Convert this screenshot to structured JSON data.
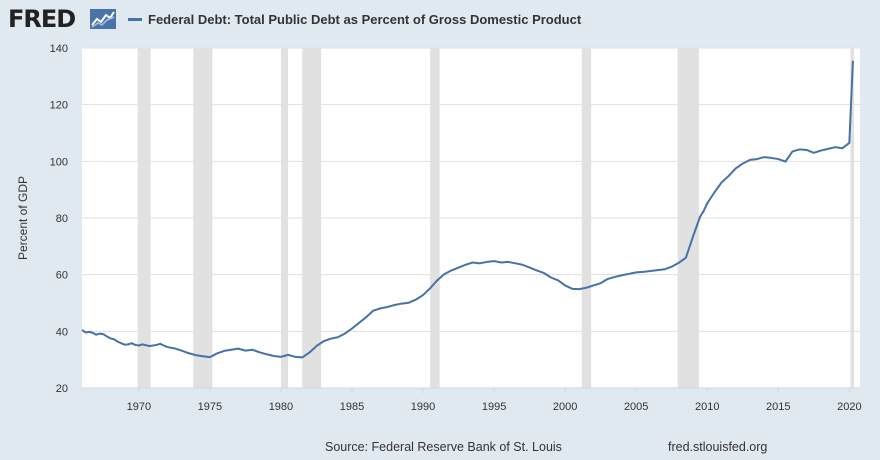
{
  "header": {
    "logo_text": "FRED",
    "legend_label": "Federal Debt: Total Public Debt as Percent of Gross Domestic Product"
  },
  "footer": {
    "source": "Source: Federal Reserve Bank of St. Louis",
    "url": "fred.stlouisfed.org"
  },
  "colors": {
    "series": "#4572a7",
    "recession": "#e1e1e1",
    "background": "#e1e9f0",
    "plot_background": "#ffffff"
  },
  "chart_data": {
    "type": "line",
    "title": "Federal Debt: Total Public Debt as Percent of Gross Domestic Product",
    "xlabel": "",
    "ylabel": "Percent of GDP",
    "xlim": [
      1966.0,
      2020.75
    ],
    "ylim": [
      20,
      140
    ],
    "x_ticks": [
      1970,
      1975,
      1980,
      1985,
      1990,
      1995,
      2000,
      2005,
      2010,
      2015,
      2020
    ],
    "y_ticks": [
      20,
      40,
      60,
      80,
      100,
      120,
      140
    ],
    "grid": "horizontal",
    "legend": "top",
    "recessions": [
      [
        1969.92,
        1970.83
      ],
      [
        1973.83,
        1975.17
      ],
      [
        1980.0,
        1980.5
      ],
      [
        1981.5,
        1982.83
      ],
      [
        1990.5,
        1991.17
      ],
      [
        2001.17,
        2001.83
      ],
      [
        2007.92,
        2009.42
      ],
      [
        2020.08,
        2020.33
      ]
    ],
    "series": [
      {
        "name": "Federal Debt: Total Public Debt as Percent of Gross Domestic Product",
        "x": [
          1966.0,
          1966.25,
          1966.5,
          1966.75,
          1967.0,
          1967.25,
          1967.5,
          1967.75,
          1968.0,
          1968.25,
          1968.5,
          1968.75,
          1969.0,
          1969.25,
          1969.5,
          1969.75,
          1970.0,
          1970.25,
          1970.5,
          1970.75,
          1971.0,
          1971.25,
          1971.5,
          1971.75,
          1972.0,
          1972.25,
          1972.5,
          1972.75,
          1973.0,
          1973.5,
          1974.0,
          1974.5,
          1975.0,
          1975.5,
          1976.0,
          1976.5,
          1977.0,
          1977.5,
          1978.0,
          1978.5,
          1979.0,
          1979.5,
          1980.0,
          1980.5,
          1981.0,
          1981.5,
          1982.0,
          1982.5,
          1983.0,
          1983.5,
          1984.0,
          1984.5,
          1985.0,
          1985.5,
          1986.0,
          1986.5,
          1987.0,
          1987.5,
          1988.0,
          1988.5,
          1989.0,
          1989.5,
          1990.0,
          1990.5,
          1991.0,
          1991.5,
          1992.0,
          1992.5,
          1993.0,
          1993.5,
          1994.0,
          1994.5,
          1995.0,
          1995.5,
          1996.0,
          1996.5,
          1997.0,
          1997.5,
          1998.0,
          1998.5,
          1999.0,
          1999.5,
          2000.0,
          2000.5,
          2001.0,
          2001.5,
          2002.0,
          2002.5,
          2003.0,
          2003.5,
          2004.0,
          2004.5,
          2005.0,
          2005.5,
          2006.0,
          2006.5,
          2007.0,
          2007.5,
          2008.0,
          2008.5,
          2009.0,
          2009.25,
          2009.5,
          2009.75,
          2010.0,
          2010.5,
          2011.0,
          2011.5,
          2012.0,
          2012.5,
          2013.0,
          2013.5,
          2014.0,
          2014.5,
          2015.0,
          2015.5,
          2016.0,
          2016.5,
          2017.0,
          2017.5,
          2018.0,
          2018.5,
          2019.0,
          2019.5,
          2020.0,
          2020.25
        ],
        "values": [
          40.5,
          39.6,
          39.8,
          39.5,
          38.8,
          39.2,
          39.0,
          38.2,
          37.5,
          37.2,
          36.4,
          35.8,
          35.3,
          35.4,
          35.8,
          35.2,
          35.0,
          35.4,
          35.1,
          34.8,
          35.0,
          35.2,
          35.6,
          35.0,
          34.5,
          34.2,
          34.0,
          33.6,
          33.2,
          32.3,
          31.6,
          31.2,
          30.9,
          32.2,
          33.1,
          33.5,
          33.9,
          33.2,
          33.5,
          32.6,
          31.9,
          31.3,
          31.0,
          31.7,
          31.0,
          30.8,
          32.5,
          34.8,
          36.5,
          37.4,
          37.9,
          39.2,
          41.0,
          43.0,
          45.0,
          47.3,
          48.1,
          48.6,
          49.3,
          49.8,
          50.1,
          51.2,
          52.8,
          55.2,
          58.0,
          60.2,
          61.5,
          62.5,
          63.5,
          64.3,
          64.0,
          64.5,
          64.8,
          64.3,
          64.5,
          64.0,
          63.5,
          62.5,
          61.5,
          60.6,
          59.0,
          58.0,
          56.2,
          55.0,
          54.9,
          55.4,
          56.2,
          57.0,
          58.5,
          59.2,
          59.8,
          60.3,
          60.8,
          61.0,
          61.3,
          61.6,
          61.9,
          62.8,
          64.2,
          66.0,
          73.5,
          77.0,
          80.5,
          82.5,
          85.2,
          89.0,
          92.5,
          94.8,
          97.5,
          99.2,
          100.5,
          100.8,
          101.5,
          101.2,
          100.8,
          99.9,
          103.5,
          104.2,
          104.0,
          103.0,
          103.8,
          104.4,
          105.0,
          104.6,
          106.5,
          135.5
        ]
      }
    ]
  }
}
